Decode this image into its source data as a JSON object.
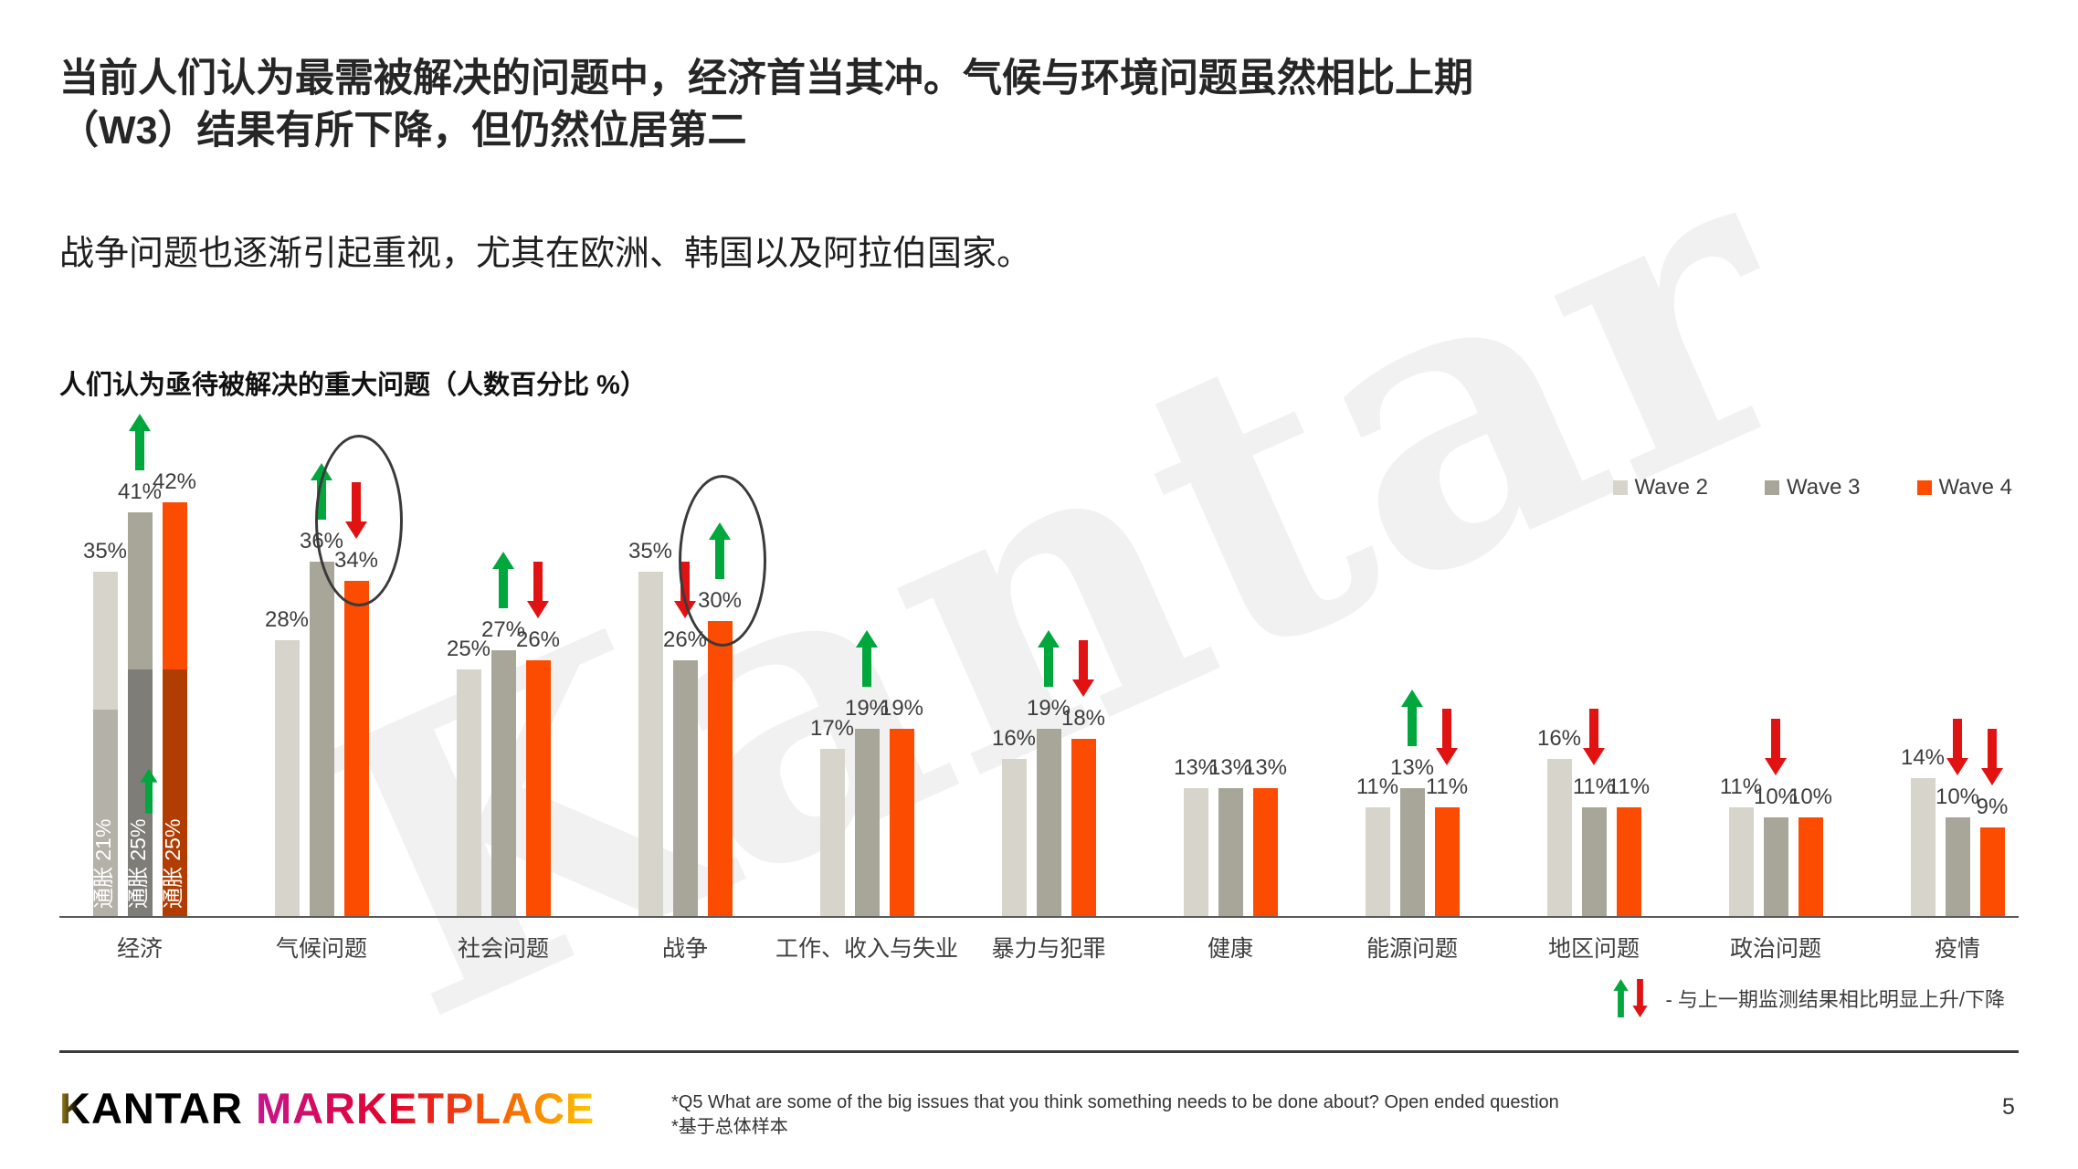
{
  "slide": {
    "title_line1": "当前人们认为最需被解决的问题中，经济首当其冲。气候与环境问题虽然相比上期",
    "title_line2": "（W3）结果有所下降，但仍然位居第二",
    "subtitle": "战争问题也逐渐引起重视，尤其在欧洲、韩国以及阿拉伯国家。",
    "watermark": "Kantar",
    "page_number": "5"
  },
  "chart_title": "人们认为亟待被解决的重大问题（人数百分比 %）",
  "arrow_note": "- 与上一期监测结果相比明显上升/下降",
  "footer": {
    "logo_kantar": "KANTAR",
    "logo_marketplace": "MARKETPLACE",
    "footnote_line1": "*Q5 What are some of the big issues that you think something needs to be done about? Open ended question",
    "footnote_line2": "*基于总体样本"
  },
  "colors": {
    "wave2": "#d6d4cb",
    "wave3": "#a7a699",
    "wave4": "#fc4c02",
    "wave2_dark": "#b3b1a8",
    "wave3_dark": "#7e7d78",
    "wave4_dark": "#b23d00",
    "up_arrow": "#00a73c",
    "down_arrow": "#e01212",
    "axis": "#595959"
  },
  "chart_data": {
    "type": "bar",
    "title": "人们认为亟待被解决的重大问题（人数百分比 %）",
    "unit": "%",
    "ylim": [
      0,
      45
    ],
    "grid": false,
    "legend_position": "top-right",
    "categories": [
      "经济",
      "气候问题",
      "社会问题",
      "战争",
      "工作、收入与失业",
      "暴力与犯罪",
      "健康",
      "能源问题",
      "地区问题",
      "政治问题",
      "疫情"
    ],
    "series": [
      {
        "name": "Wave 2",
        "color": "#d6d4cb",
        "values": [
          35,
          28,
          25,
          35,
          17,
          16,
          13,
          11,
          16,
          11,
          14
        ]
      },
      {
        "name": "Wave 3",
        "color": "#a7a699",
        "values": [
          41,
          36,
          27,
          26,
          19,
          19,
          13,
          13,
          11,
          10,
          10
        ]
      },
      {
        "name": "Wave 4",
        "color": "#fc4c02",
        "values": [
          42,
          34,
          26,
          30,
          19,
          18,
          13,
          11,
          11,
          10,
          9
        ]
      }
    ],
    "economy_inflation_overlay": {
      "category": "经济",
      "values": [
        21,
        25,
        25
      ],
      "labels": [
        "通胀 21%",
        "通胀 25%",
        "通胀 25%"
      ],
      "colors": [
        "#b3b1a8",
        "#7e7d78",
        "#b23d00"
      ],
      "wave4_small_arrow": "up"
    },
    "change_arrows": [
      [
        "",
        "up",
        ""
      ],
      [
        "",
        "up",
        "down"
      ],
      [
        "",
        "up",
        "down"
      ],
      [
        "",
        "down",
        "up"
      ],
      [
        "",
        "up",
        ""
      ],
      [
        "",
        "up",
        "down"
      ],
      [
        "",
        "",
        ""
      ],
      [
        "",
        "up",
        "down"
      ],
      [
        "",
        "down",
        ""
      ],
      [
        "",
        "down",
        ""
      ],
      [
        "",
        "down",
        "down"
      ]
    ],
    "circled_bars": [
      [
        1,
        2
      ],
      [
        3,
        2
      ]
    ]
  }
}
